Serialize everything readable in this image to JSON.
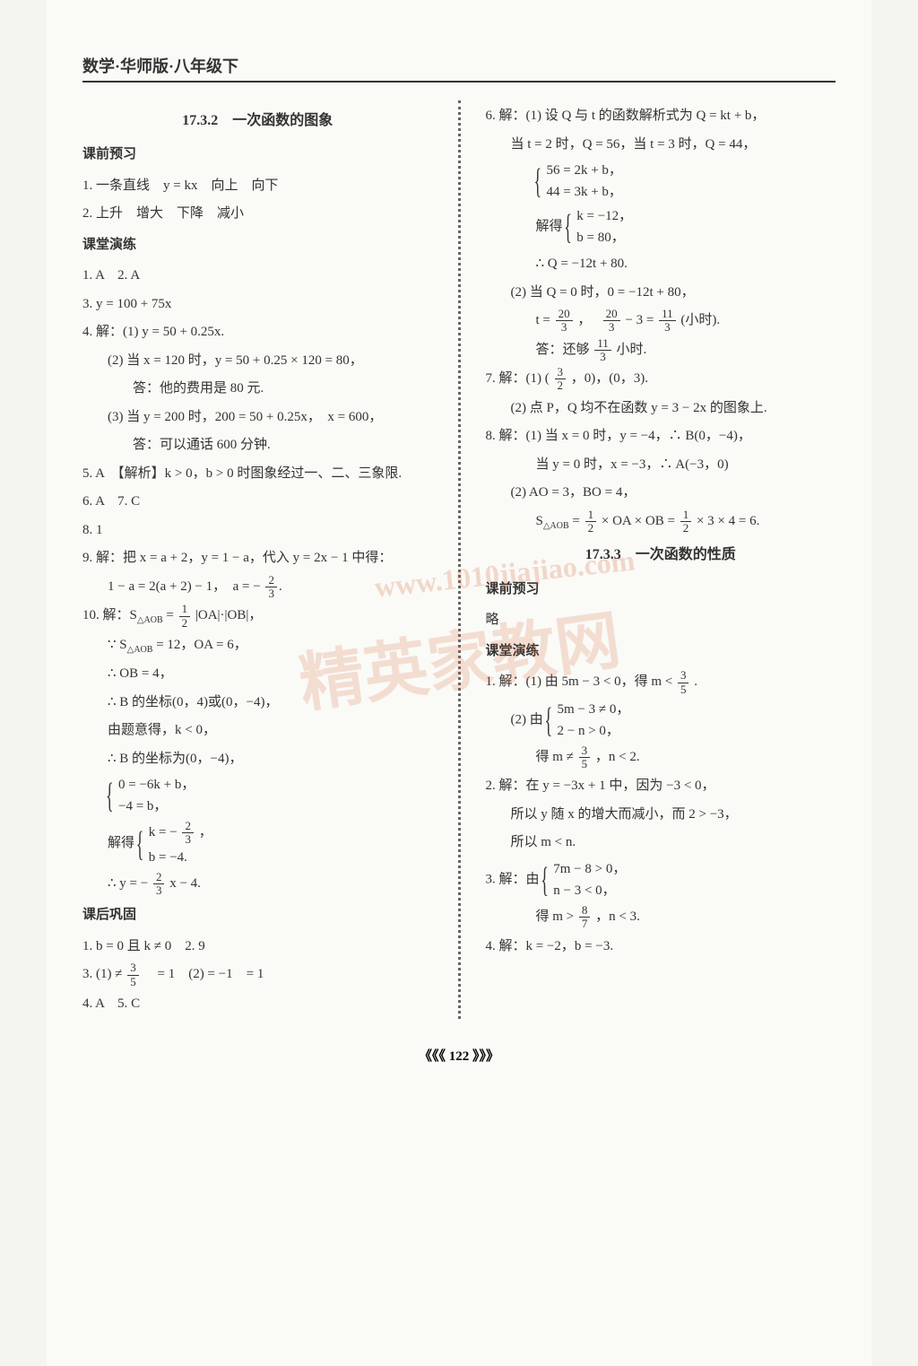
{
  "header": "数学·华师版·八年级下",
  "page_number": "《《《 122 》》》",
  "watermark_main": "精英家教网",
  "watermark_sub": "www.1010jiajiao.com",
  "left": {
    "title_1732": "17.3.2　一次函数的图象",
    "pre_label": "课前预习",
    "pre1": "1. 一条直线　y = kx　向上　向下",
    "pre2": "2. 上升　增大　下降　减小",
    "class_label": "课堂演练",
    "c1": "1. A　2. A",
    "c3": "3. y = 100 + 75x",
    "c4": "4. 解：(1) y = 50 + 0.25x.",
    "c4_2": "(2) 当 x = 120 时，y = 50 + 0.25 × 120 = 80，",
    "c4_2b": "答：他的费用是 80 元.",
    "c4_3": "(3) 当 y = 200 时，200 = 50 + 0.25x，　x = 600，",
    "c4_3b": "答：可以通话 600 分钟.",
    "c5": "5. A　【解析】k > 0，b > 0 时图象经过一、二、三象限.",
    "c6": "6. A　7. C",
    "c8": "8. 1",
    "c9": "9. 解：把 x = a + 2，y = 1 − a，代入 y = 2x − 1 中得：",
    "c9b": "1 − a = 2(a + 2) − 1，　a = −",
    "c9_val_num": "2",
    "c9_val_den": "3",
    "c10": "10. 解：S",
    "c10_sub": "△AOB",
    "c10_eq": " = ",
    "c10_f1n": "1",
    "c10_f1d": "2",
    "c10_rest": "|OA|·|OB|，",
    "c10b_pre": "∵ S",
    "c10b_eq": " = 12，OA = 6，",
    "c10c": "∴ OB = 4，",
    "c10d": "∴ B 的坐标(0，4)或(0，−4)，",
    "c10e": "由题意得，k < 0，",
    "c10f": "∴ B 的坐标为(0，−4)，",
    "sys1_a": "0 = −6k + b，",
    "sys1_b": "−4 = b，",
    "sys2_label": "解得",
    "sys2_a_pre": "k = −",
    "sys2_a_num": "2",
    "sys2_a_den": "3",
    "sys2_a_post": "，",
    "sys2_b": "b = −4.",
    "c10_final_pre": "∴ y = −",
    "c10_final_num": "2",
    "c10_final_den": "3",
    "c10_final_post": "x − 4.",
    "after_label": "课后巩固",
    "a1": "1. b = 0 且 k ≠ 0　2. 9",
    "a3_pre": "3. (1) ≠ ",
    "a3_f1n": "3",
    "a3_f1d": "5",
    "a3_mid": "　= 1　(2) = −1　= 1",
    "a4": "4. A　5. C"
  },
  "right": {
    "r6": "6. 解：(1) 设 Q 与 t 的函数解析式为 Q = kt + b，",
    "r6b": "当 t = 2 时，Q = 56，当 t = 3 时，Q = 44，",
    "sys3_a": "56 = 2k + b，",
    "sys3_b": "44 = 3k + b，",
    "sys4_label": "解得",
    "sys4_a": "k = −12，",
    "sys4_b": "b = 80，",
    "r6c": "∴ Q = −12t + 80.",
    "r6_2": "(2) 当 Q = 0 时，0 = −12t + 80，",
    "r6_2b_pre": "t = ",
    "r6_2b_f1n": "20",
    "r6_2b_f1d": "3",
    "r6_2b_mid": "，　",
    "r6_2b_f2n": "20",
    "r6_2b_f2d": "3",
    "r6_2b_mid2": " − 3 = ",
    "r6_2b_f3n": "11",
    "r6_2b_f3d": "3",
    "r6_2b_post": "(小时).",
    "r6_2c_pre": "答：还够 ",
    "r6_2c_num": "11",
    "r6_2c_den": "3",
    "r6_2c_post": " 小时.",
    "r7_pre": "7. 解：(1) (",
    "r7_f1n": "3",
    "r7_f1d": "2",
    "r7_post": "，0)，(0，3).",
    "r7_2": "(2) 点 P，Q 均不在函数 y = 3 − 2x 的图象上.",
    "r8": "8. 解：(1) 当 x = 0 时，y = −4，∴ B(0，−4)，",
    "r8b": "当 y = 0 时，x = −3，∴ A(−3，0)",
    "r8_2": "(2) AO = 3，BO = 4，",
    "r8_2b_pre": "S",
    "r8_2b_sub": "△AOB",
    "r8_2b_mid1": " = ",
    "r8_2b_f1n": "1",
    "r8_2b_f1d": "2",
    "r8_2b_mid2": " × OA × OB = ",
    "r8_2b_f2n": "1",
    "r8_2b_f2d": "2",
    "r8_2b_post": " × 3 × 4 = 6.",
    "title_1733": "17.3.3　一次函数的性质",
    "pre_label2": "课前预习",
    "pre_略": "略",
    "class_label2": "课堂演练",
    "rc1_pre": "1. 解：(1) 由 5m − 3 < 0，得 m < ",
    "rc1_num": "3",
    "rc1_den": "5",
    "rc1_post": ".",
    "rc1_2_label": "(2) 由",
    "sys5_a": "5m − 3 ≠ 0，",
    "sys5_b": "2 − n > 0，",
    "rc1_2b_pre": "得 m ≠ ",
    "rc1_2b_num": "3",
    "rc1_2b_den": "5",
    "rc1_2b_post": "，n < 2.",
    "rc2": "2. 解：在 y = −3x + 1 中，因为 −3 < 0，",
    "rc2b": "所以 y 随 x 的增大而减小，而 2 > −3，",
    "rc2c": "所以 m < n.",
    "rc3_label": "3. 解：由",
    "sys6_a": "7m − 8 > 0，",
    "sys6_b": "n − 3 < 0，",
    "rc3b_pre": "得 m > ",
    "rc3b_num": "8",
    "rc3b_den": "7",
    "rc3b_post": "，n < 3.",
    "rc4": "4. 解：k = −2，b = −3."
  }
}
